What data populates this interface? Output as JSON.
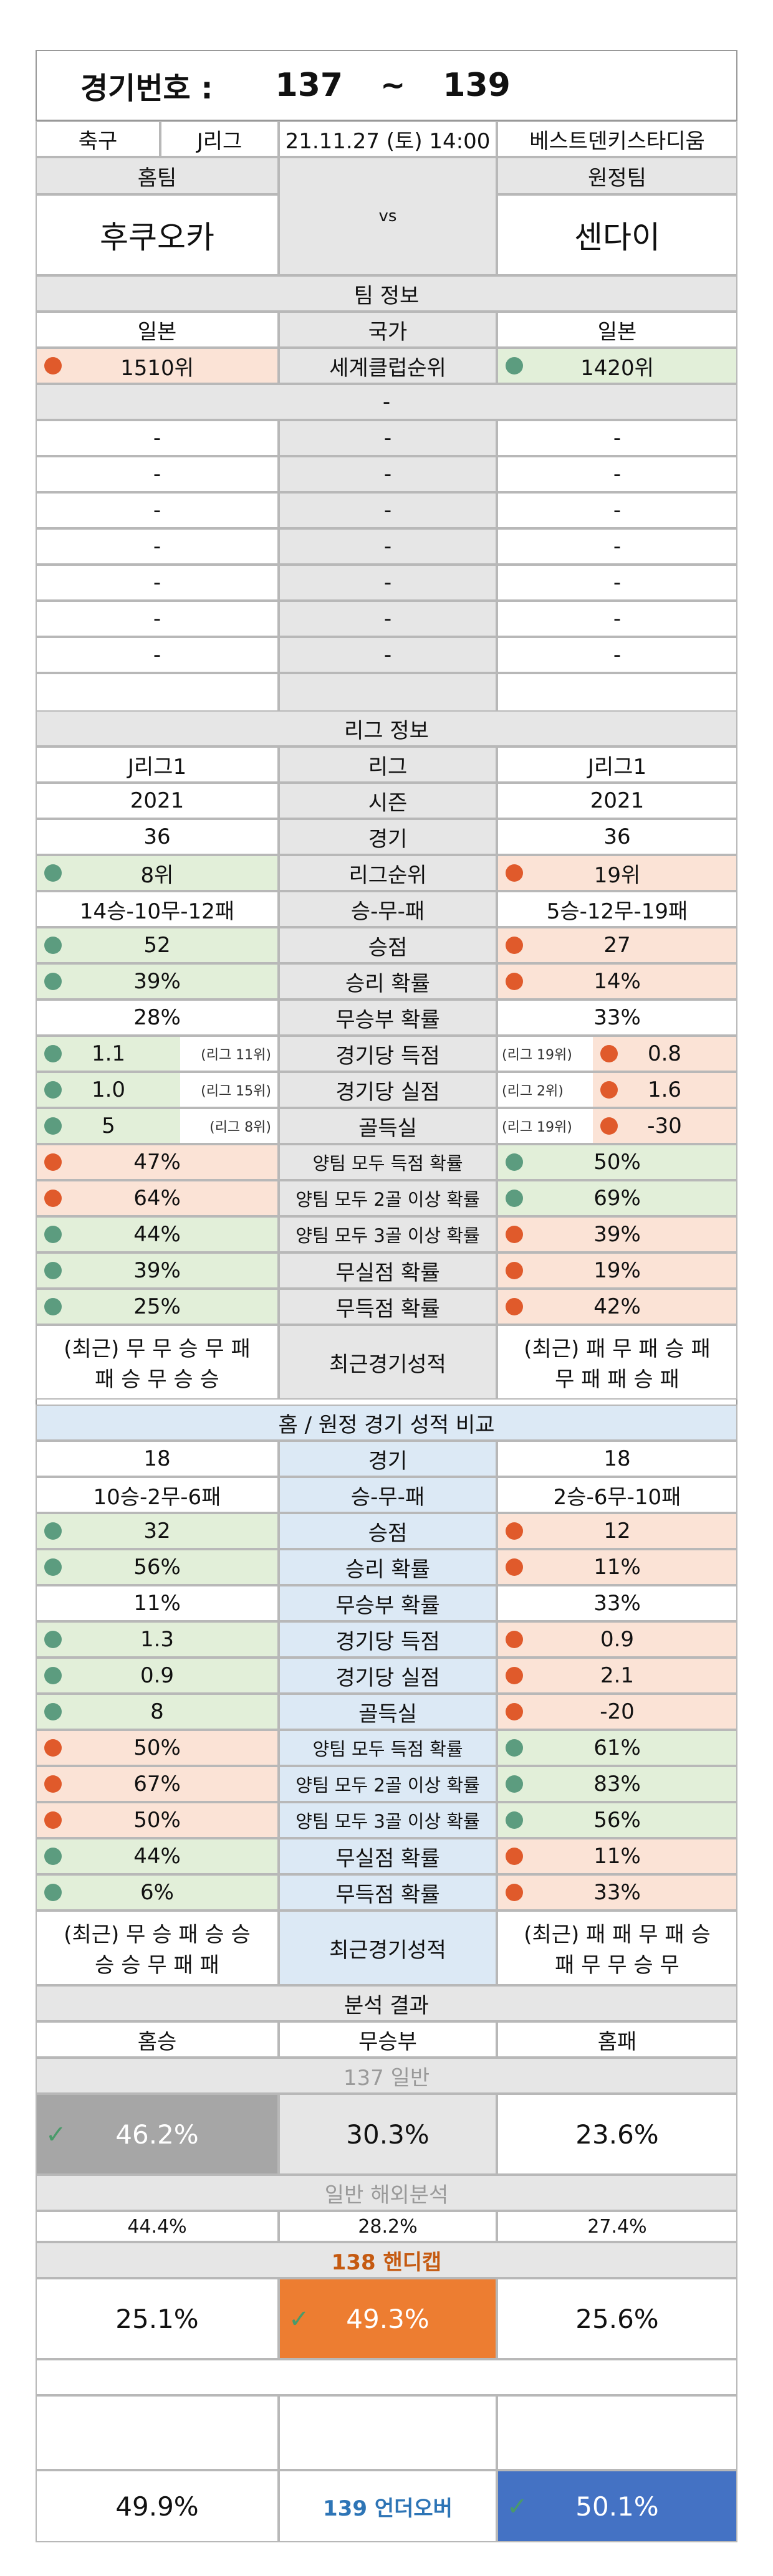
{
  "header": {
    "label": "경기번호 :",
    "from": "137",
    "tilde": "~",
    "to": "139"
  },
  "match": {
    "sport": "축구",
    "league": "J리그",
    "datetime": "21.11.27 (토) 14:00",
    "venue": "베스트덴키스타디움"
  },
  "teams": {
    "home_label": "홈팀",
    "away_label": "원정팀",
    "vs": "vs",
    "home": "후쿠오카",
    "away": "센다이"
  },
  "team_info": {
    "title": "팀 정보",
    "country": {
      "home": "일본",
      "label": "국가",
      "away": "일본"
    },
    "world_rank": {
      "home": "1510위",
      "label": "세계클럽순위",
      "away": "1420위"
    },
    "dash": "-"
  },
  "league_info": {
    "title": "리그 정보",
    "rows": [
      {
        "home": "J리그1",
        "label": "리그",
        "away": "J리그1"
      },
      {
        "home": "2021",
        "label": "시즌",
        "away": "2021"
      },
      {
        "home": "36",
        "label": "경기",
        "away": "36"
      },
      {
        "home": "8위",
        "label": "리그순위",
        "away": "19위"
      },
      {
        "home": "14승-10무-12패",
        "label": "승-무-패",
        "away": "5승-12무-19패"
      },
      {
        "home": "52",
        "label": "승점",
        "away": "27"
      },
      {
        "home": "39%",
        "label": "승리 확률",
        "away": "14%"
      },
      {
        "home": "28%",
        "label": "무승부 확률",
        "away": "33%"
      },
      {
        "home": "1.1",
        "home_rank": "(리그 11위)",
        "label": "경기당 득점",
        "away": "0.8",
        "away_rank": "(리그 19위)"
      },
      {
        "home": "1.0",
        "home_rank": "(리그 15위)",
        "label": "경기당 실점",
        "away": "1.6",
        "away_rank": "(리그 2위)"
      },
      {
        "home": "5",
        "home_rank": "(리그 8위)",
        "label": "골득실",
        "away": "-30",
        "away_rank": "(리그 19위)"
      },
      {
        "home": "47%",
        "label": "양팀 모두 득점 확률",
        "away": "50%"
      },
      {
        "home": "64%",
        "label": "양팀 모두 2골 이상 확률",
        "away": "69%"
      },
      {
        "home": "44%",
        "label": "양팀 모두 3골 이상 확률",
        "away": "39%"
      },
      {
        "home": "39%",
        "label": "무실점 확률",
        "away": "19%"
      },
      {
        "home": "25%",
        "label": "무득점 확률",
        "away": "42%"
      }
    ],
    "recent": {
      "home_1": "(최근) 무 무 승 무 패",
      "home_2": "패 승 무 승 승",
      "label": "최근경기성적",
      "away_1": "(최근) 패 무 패 승 패",
      "away_2": "무 패 패 승 패"
    }
  },
  "compare": {
    "title": "홈 / 원정 경기 성적 비교",
    "rows": [
      {
        "home": "18",
        "label": "경기",
        "away": "18"
      },
      {
        "home": "10승-2무-6패",
        "label": "승-무-패",
        "away": "2승-6무-10패"
      },
      {
        "home": "32",
        "label": "승점",
        "away": "12"
      },
      {
        "home": "56%",
        "label": "승리 확률",
        "away": "11%"
      },
      {
        "home": "11%",
        "label": "무승부 확률",
        "away": "33%"
      },
      {
        "home": "1.3",
        "label": "경기당 득점",
        "away": "0.9"
      },
      {
        "home": "0.9",
        "label": "경기당 실점",
        "away": "2.1"
      },
      {
        "home": "8",
        "label": "골득실",
        "away": "-20"
      },
      {
        "home": "50%",
        "label": "양팀 모두 득점 확률",
        "away": "61%"
      },
      {
        "home": "67%",
        "label": "양팀 모두 2골 이상 확률",
        "away": "83%"
      },
      {
        "home": "50%",
        "label": "양팀 모두 3골 이상 확률",
        "away": "56%"
      },
      {
        "home": "44%",
        "label": "무실점 확률",
        "away": "11%"
      },
      {
        "home": "6%",
        "label": "무득점 확률",
        "away": "33%"
      }
    ],
    "recent": {
      "home_1": "(최근) 무 승 패 승 승",
      "home_2": "승 승 무 패 패",
      "label": "최근경기성적",
      "away_1": "(최근) 패 패 무 패 승",
      "away_2": "패 무 무 승 무"
    }
  },
  "analysis": {
    "title": "분석 결과",
    "col_home": "홈승",
    "col_draw": "무승부",
    "col_away": "홈패",
    "general_title": "137 일반",
    "general": {
      "home": "46.2%",
      "draw": "30.3%",
      "away": "23.6%"
    },
    "overseas_title": "일반 해외분석",
    "overseas": {
      "home": "44.4%",
      "draw": "28.2%",
      "away": "27.4%"
    },
    "handicap_title": "138 핸디캡",
    "handicap": {
      "home": "25.1%",
      "draw": "49.3%",
      "away": "25.6%"
    },
    "uo_title": "139 언더오버",
    "uo": {
      "under": "49.9%",
      "over": "50.1%"
    },
    "check": "✓"
  },
  "colors": {
    "good": "#e2efd9",
    "bad": "#fbe3d6",
    "header": "#e6e6e6",
    "compare": "#dce9f5",
    "gray_pick": "#a6a6a6",
    "orange_pick": "#ed7d31",
    "blue_pick": "#4472c4",
    "handicap_title": "#c55a11",
    "uo_title": "#2e75b6"
  }
}
